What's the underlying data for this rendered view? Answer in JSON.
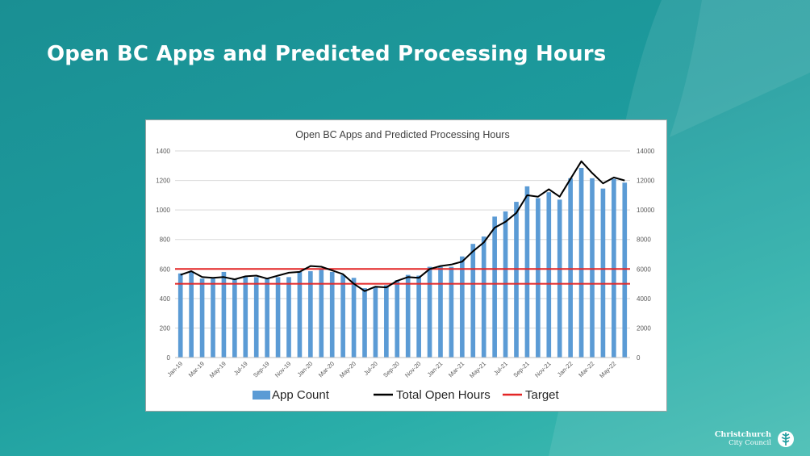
{
  "slide": {
    "title": "Open BC Apps and Predicted Processing Hours"
  },
  "logo": {
    "line1": "Christchurch",
    "line2": "City Council",
    "icon": "fern-leaf-icon"
  },
  "colors": {
    "background": "#1d9b9d",
    "bars": "#5b9bd5",
    "line": "#000000",
    "target": "#e32626"
  },
  "chart_data": {
    "type": "bar",
    "title": "Open BC Apps and Predicted Processing Hours",
    "categories": [
      "Jan-19",
      "Feb-19",
      "Mar-19",
      "Apr-19",
      "May-19",
      "Jun-19",
      "Jul-19",
      "Aug-19",
      "Sep-19",
      "Oct-19",
      "Nov-19",
      "Dec-19",
      "Jan-20",
      "Feb-20",
      "Mar-20",
      "Apr-20",
      "May-20",
      "Jun-20",
      "Jul-20",
      "Aug-20",
      "Sep-20",
      "Oct-20",
      "Nov-20",
      "Dec-20",
      "Jan-21",
      "Feb-21",
      "Mar-21",
      "Apr-21",
      "May-21",
      "Jun-21",
      "Jul-21",
      "Aug-21",
      "Sep-21",
      "Oct-21",
      "Nov-21",
      "Dec-21",
      "Jan-22",
      "Feb-22",
      "Mar-22",
      "Apr-22",
      "May-22",
      "Jun-22"
    ],
    "x_tick_labels": [
      "Jan-19",
      "Mar-19",
      "May-19",
      "Jul-19",
      "Sep-19",
      "Nov-19",
      "Jan-20",
      "Mar-20",
      "May-20",
      "Jul-20",
      "Sep-20",
      "Nov-20",
      "Jan-21",
      "Mar-21",
      "May-21",
      "Jul-21",
      "Sep-21",
      "Nov-21",
      "Jan-22",
      "Mar-22",
      "May-22"
    ],
    "series": [
      {
        "name": "App Count",
        "type": "bar",
        "axis": "left",
        "values": [
          570,
          580,
          535,
          535,
          580,
          535,
          545,
          545,
          540,
          545,
          545,
          580,
          585,
          595,
          580,
          560,
          540,
          470,
          480,
          490,
          525,
          560,
          555,
          615,
          615,
          615,
          685,
          770,
          820,
          955,
          990,
          1055,
          1160,
          1080,
          1120,
          1070,
          1215,
          1285,
          1215,
          1145,
          1210,
          1185
        ]
      },
      {
        "name": "Total Open Hours",
        "type": "line",
        "axis": "right",
        "values": [
          5600,
          5850,
          5450,
          5400,
          5450,
          5300,
          5500,
          5550,
          5350,
          5550,
          5750,
          5800,
          6200,
          6150,
          5900,
          5650,
          5000,
          4500,
          4800,
          4750,
          5200,
          5450,
          5400,
          6000,
          6200,
          6300,
          6500,
          7200,
          7800,
          8800,
          9200,
          9800,
          11000,
          10900,
          11400,
          10900,
          12100,
          13300,
          12500,
          11800,
          12200,
          12000
        ]
      }
    ],
    "targets": {
      "name": "Target",
      "axis": "left",
      "values": [
        500,
        600
      ]
    },
    "y_left": {
      "ylim": [
        0,
        1400
      ],
      "ticks": [
        "0",
        "200",
        "400",
        "600",
        "800",
        "1000",
        "1200",
        "1400"
      ]
    },
    "y_right": {
      "ylim": [
        0,
        14000
      ],
      "ticks": [
        "0",
        "2000",
        "4000",
        "6000",
        "8000",
        "10000",
        "12000",
        "14000"
      ]
    },
    "grid": true,
    "legend_position": "bottom",
    "legend": [
      "App Count",
      "Total Open Hours",
      "Target"
    ]
  }
}
